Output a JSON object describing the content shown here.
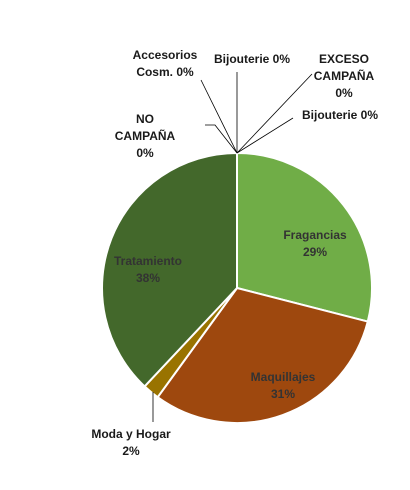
{
  "chart_data": {
    "type": "pie",
    "slices": [
      {
        "name": "Fragancias",
        "value": 29,
        "label": "29%",
        "color": "#70ad47"
      },
      {
        "name": "Maquillajes",
        "value": 31,
        "label": "31%",
        "color": "#9e480e"
      },
      {
        "name": "Moda y Hogar",
        "value": 2,
        "label": "2%",
        "color": "#997300"
      },
      {
        "name": "Tratamiento",
        "value": 38,
        "label": "38%",
        "color": "#43682b"
      },
      {
        "name": "NO CAMPAÑA",
        "value": 0,
        "label": "0%",
        "color": "#264478"
      },
      {
        "name": "Accesorios Cosm.",
        "value": 0,
        "label": "0%",
        "color": "#5b9bd5"
      },
      {
        "name": "Bijouterie",
        "value": 0,
        "label": "0%",
        "color": "#ffc000"
      },
      {
        "name": "EXCESO CAMPAÑA",
        "value": 0,
        "label": "0%",
        "color": "#4472c4"
      },
      {
        "name": "Bijouterie",
        "value": 0,
        "label": "0%",
        "color": "#ed7d31"
      }
    ]
  }
}
